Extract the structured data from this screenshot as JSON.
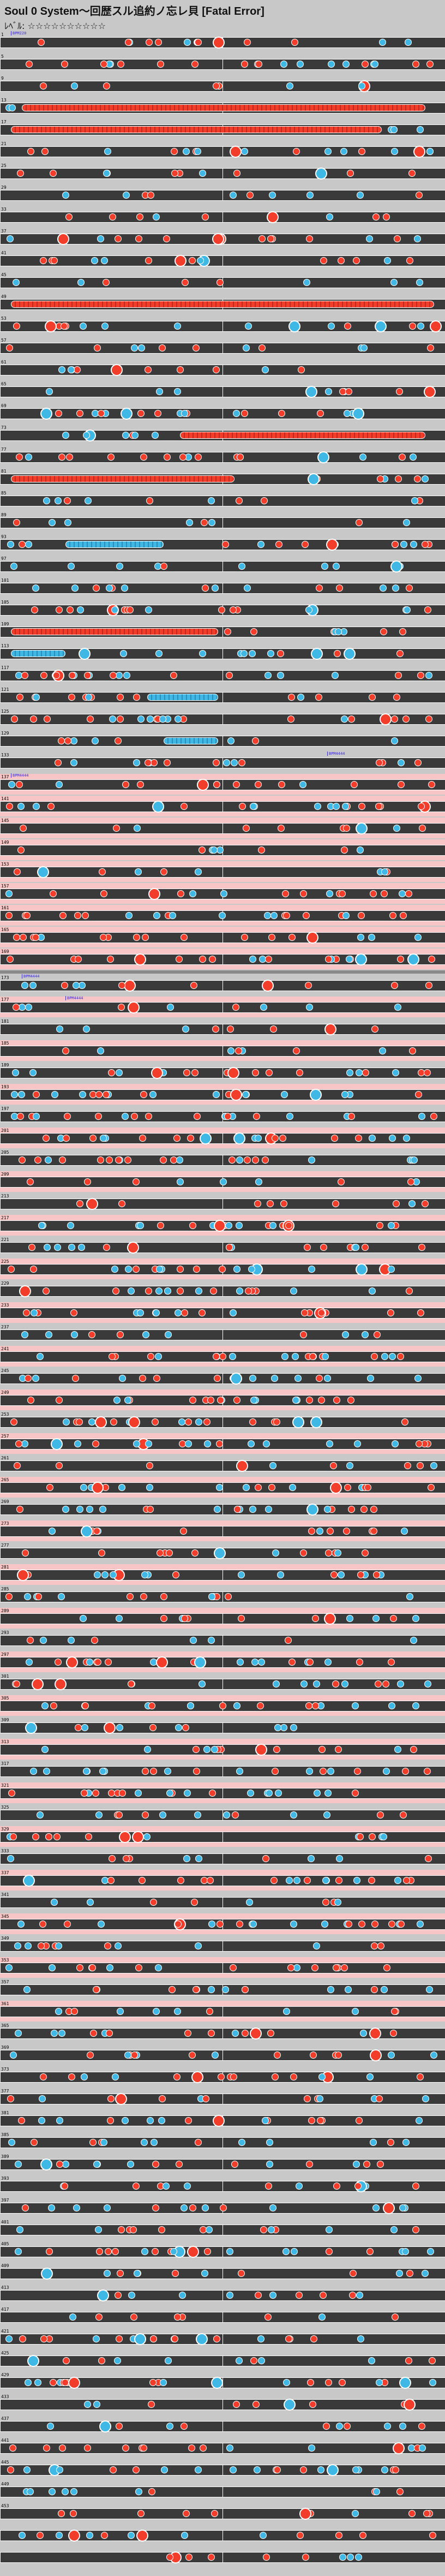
{
  "header": {
    "title": "Soul 0 System～回歴スル追約ノ忘レ貝 [Fatal Error]",
    "difficulty": "ﾚﾍﾞﾙ: ☆☆☆☆☆☆☆☆☆☆"
  },
  "colors": {
    "don": "#f33d2b",
    "ka": "#40b8e6",
    "lane": "#3a3a3a",
    "gogo": "#f7c5c5",
    "bg": "#c8c8c8"
  },
  "markers": {
    "bpm1": "BPM220",
    "bpm2": "BPM4444",
    "bpm3": "BPM4444",
    "bpm4": "BPM4444",
    "bpm5": "BPM4444"
  },
  "measure_labels": [
    "1",
    "5",
    "9",
    "13",
    "17",
    "21",
    "25",
    "29",
    "33",
    "37",
    "41",
    "45",
    "49",
    "53",
    "57",
    "61",
    "65",
    "69",
    "73",
    "77",
    "81",
    "85",
    "89",
    "93",
    "97",
    "101",
    "105",
    "109",
    "113",
    "117",
    "121",
    "125",
    "129",
    "133",
    "137",
    "141",
    "145",
    "149",
    "153",
    "157",
    "161",
    "165",
    "169",
    "173",
    "177",
    "181",
    "185",
    "189",
    "193",
    "197",
    "201",
    "205",
    "209",
    "213",
    "217",
    "221",
    "225",
    "229",
    "233",
    "237",
    "241",
    "245",
    "249",
    "253",
    "257",
    "261",
    "265",
    "269",
    "273",
    "277",
    "281",
    "285",
    "289",
    "293",
    "297",
    "301",
    "305",
    "309",
    "313",
    "317",
    "321",
    "325",
    "329",
    "333",
    "337",
    "341",
    "345",
    "349",
    "353",
    "357",
    "361",
    "365",
    "369",
    "373",
    "377",
    "381",
    "385",
    "389",
    "393",
    "397",
    "401",
    "405",
    "409",
    "413",
    "417",
    "421",
    "425",
    "429",
    "433",
    "437",
    "441",
    "445",
    "449",
    "453"
  ]
}
